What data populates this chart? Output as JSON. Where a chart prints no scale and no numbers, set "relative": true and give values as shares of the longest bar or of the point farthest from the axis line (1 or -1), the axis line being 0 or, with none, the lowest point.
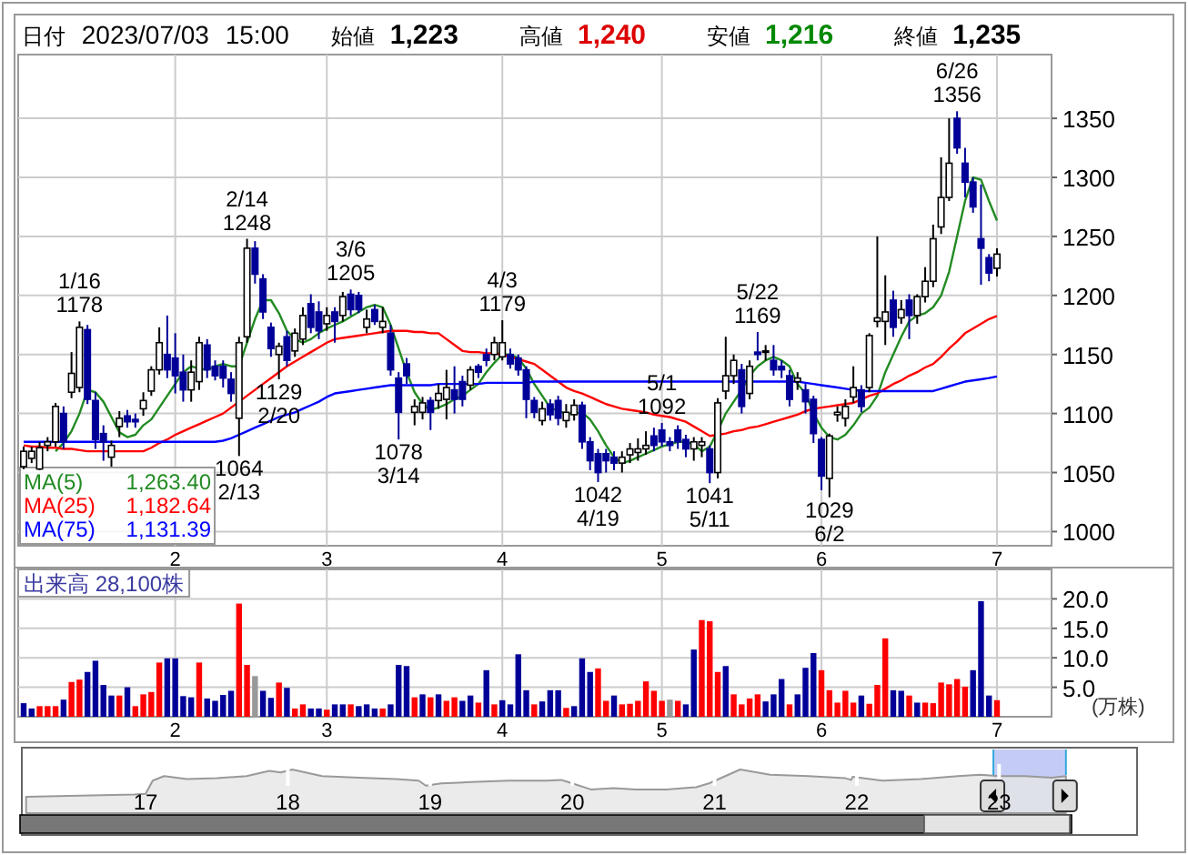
{
  "chart_data": [
    {
      "type": "candlestick",
      "title": "日付 2023/07/03 15:00 始値 1,223 高値 1,240 安値 1,216 終値 1,235",
      "categories": [
        null,
        null,
        null,
        null,
        null,
        null,
        null,
        null,
        null,
        null,
        null,
        null,
        null,
        null,
        null,
        null,
        null,
        null,
        null,
        "2",
        null,
        null,
        null,
        null,
        null,
        null,
        null,
        null,
        null,
        null,
        null,
        null,
        null,
        null,
        null,
        null,
        null,
        null,
        "3",
        null,
        null,
        null,
        null,
        null,
        null,
        null,
        null,
        null,
        null,
        null,
        null,
        null,
        null,
        null,
        null,
        null,
        null,
        null,
        null,
        null,
        "4",
        null,
        null,
        null,
        null,
        null,
        null,
        null,
        null,
        null,
        null,
        null,
        null,
        null,
        null,
        null,
        null,
        null,
        null,
        null,
        "5",
        null,
        null,
        null,
        null,
        null,
        null,
        null,
        null,
        null,
        null,
        null,
        null,
        null,
        null,
        null,
        null,
        null,
        null,
        null,
        "6",
        null,
        null,
        null,
        null,
        null,
        null,
        null,
        null,
        null,
        null,
        null,
        null,
        null,
        null,
        null,
        null,
        null,
        null,
        null,
        null,
        null,
        "7"
      ],
      "ohlc": [
        [
          1055,
          1072,
          1053,
          1068
        ],
        [
          1062,
          1072,
          1058,
          1068
        ],
        [
          1053,
          1076,
          1052,
          1071
        ],
        [
          1073,
          1080,
          1068,
          1076
        ],
        [
          1076,
          1109,
          1072,
          1106
        ],
        [
          1100,
          1106,
          1070,
          1076
        ],
        [
          1118,
          1152,
          1113,
          1134
        ],
        [
          1122,
          1178,
          1118,
          1173
        ],
        [
          1171,
          1175,
          1108,
          1112
        ],
        [
          1111,
          1118,
          1070,
          1078
        ],
        [
          1083,
          1090,
          1060,
          1076
        ],
        [
          1063,
          1077,
          1055,
          1073
        ],
        [
          1089,
          1102,
          1080,
          1096
        ],
        [
          1098,
          1103,
          1088,
          1093
        ],
        [
          1095,
          1100,
          1088,
          1093
        ],
        [
          1104,
          1118,
          1098,
          1111
        ],
        [
          1119,
          1140,
          1115,
          1137
        ],
        [
          1137,
          1173,
          1133,
          1160
        ],
        [
          1150,
          1183,
          1130,
          1137
        ],
        [
          1147,
          1168,
          1117,
          1132
        ],
        [
          1135,
          1150,
          1110,
          1120
        ],
        [
          1120,
          1145,
          1110,
          1135
        ],
        [
          1127,
          1165,
          1120,
          1160
        ],
        [
          1158,
          1163,
          1130,
          1137
        ],
        [
          1140,
          1145,
          1128,
          1132
        ],
        [
          1140,
          1145,
          1122,
          1130
        ],
        [
          1129,
          1135,
          1110,
          1117
        ],
        [
          1096,
          1165,
          1064,
          1160
        ],
        [
          1165,
          1248,
          1160,
          1240
        ],
        [
          1240,
          1246,
          1210,
          1218
        ],
        [
          1214,
          1218,
          1180,
          1186
        ],
        [
          1173,
          1177,
          1148,
          1155
        ],
        [
          1150,
          1160,
          1129,
          1157
        ],
        [
          1165,
          1170,
          1140,
          1145
        ],
        [
          1153,
          1172,
          1148,
          1168
        ],
        [
          1163,
          1190,
          1158,
          1183
        ],
        [
          1193,
          1201,
          1168,
          1173
        ],
        [
          1186,
          1195,
          1163,
          1170
        ],
        [
          1176,
          1190,
          1170,
          1183
        ],
        [
          1186,
          1190,
          1160,
          1178
        ],
        [
          1183,
          1203,
          1178,
          1199
        ],
        [
          1201,
          1205,
          1183,
          1188
        ],
        [
          1200,
          1203,
          1185,
          1188
        ],
        [
          1173,
          1188,
          1168,
          1180
        ],
        [
          1188,
          1192,
          1175,
          1178
        ],
        [
          1173,
          1190,
          1168,
          1178
        ],
        [
          1168,
          1175,
          1132,
          1137
        ],
        [
          1130,
          1135,
          1078,
          1101
        ],
        [
          1142,
          1147,
          1125,
          1132
        ],
        [
          1101,
          1112,
          1090,
          1106
        ],
        [
          1101,
          1114,
          1095,
          1109
        ],
        [
          1111,
          1114,
          1086,
          1101
        ],
        [
          1111,
          1125,
          1104,
          1117
        ],
        [
          1112,
          1137,
          1095,
          1122
        ],
        [
          1120,
          1140,
          1100,
          1112
        ],
        [
          1127,
          1132,
          1106,
          1112
        ],
        [
          1124,
          1140,
          1120,
          1137
        ],
        [
          1140,
          1142,
          1130,
          1135
        ],
        [
          1150,
          1155,
          1140,
          1145
        ],
        [
          1150,
          1165,
          1145,
          1160
        ],
        [
          1148,
          1179,
          1145,
          1160
        ],
        [
          1150,
          1155,
          1138,
          1142
        ],
        [
          1147,
          1150,
          1132,
          1137
        ],
        [
          1137,
          1140,
          1096,
          1112
        ],
        [
          1111,
          1114,
          1096,
          1101
        ],
        [
          1094,
          1110,
          1090,
          1104
        ],
        [
          1108,
          1112,
          1094,
          1099
        ],
        [
          1111,
          1115,
          1090,
          1096
        ],
        [
          1094,
          1108,
          1088,
          1101
        ],
        [
          1099,
          1112,
          1094,
          1107
        ],
        [
          1107,
          1110,
          1070,
          1076
        ],
        [
          1076,
          1080,
          1052,
          1060
        ],
        [
          1066,
          1070,
          1042,
          1050
        ],
        [
          1066,
          1070,
          1050,
          1060
        ],
        [
          1063,
          1068,
          1052,
          1058
        ],
        [
          1058,
          1068,
          1050,
          1063
        ],
        [
          1065,
          1075,
          1058,
          1070
        ],
        [
          1067,
          1079,
          1060,
          1070
        ],
        [
          1070,
          1085,
          1065,
          1073
        ],
        [
          1081,
          1088,
          1068,
          1073
        ],
        [
          1086,
          1092,
          1072,
          1076
        ],
        [
          1076,
          1080,
          1068,
          1073
        ],
        [
          1086,
          1090,
          1070,
          1076
        ],
        [
          1078,
          1082,
          1063,
          1070
        ],
        [
          1070,
          1080,
          1060,
          1076
        ],
        [
          1073,
          1080,
          1063,
          1076
        ],
        [
          1070,
          1073,
          1041,
          1050
        ],
        [
          1050,
          1113,
          1045,
          1109
        ],
        [
          1119,
          1165,
          1112,
          1132
        ],
        [
          1132,
          1150,
          1125,
          1145
        ],
        [
          1137,
          1142,
          1100,
          1106
        ],
        [
          1117,
          1145,
          1112,
          1140
        ],
        [
          1152,
          1169,
          1145,
          1150
        ],
        [
          1153,
          1158,
          1145,
          1153
        ],
        [
          1145,
          1158,
          1132,
          1137
        ],
        [
          1140,
          1145,
          1130,
          1137
        ],
        [
          1132,
          1137,
          1106,
          1112
        ],
        [
          1127,
          1135,
          1120,
          1130
        ],
        [
          1120,
          1125,
          1100,
          1110
        ],
        [
          1112,
          1115,
          1075,
          1083
        ],
        [
          1078,
          1080,
          1035,
          1047
        ],
        [
          1045,
          1083,
          1029,
          1081
        ],
        [
          1099,
          1106,
          1093,
          1101
        ],
        [
          1096,
          1112,
          1089,
          1106
        ],
        [
          1114,
          1140,
          1109,
          1122
        ],
        [
          1120,
          1124,
          1101,
          1106
        ],
        [
          1122,
          1168,
          1118,
          1166
        ],
        [
          1178,
          1250,
          1173,
          1181
        ],
        [
          1178,
          1217,
          1158,
          1186
        ],
        [
          1196,
          1204,
          1165,
          1173
        ],
        [
          1181,
          1196,
          1176,
          1188
        ],
        [
          1196,
          1201,
          1163,
          1183
        ],
        [
          1183,
          1201,
          1176,
          1199
        ],
        [
          1199,
          1224,
          1194,
          1212
        ],
        [
          1212,
          1260,
          1207,
          1248
        ],
        [
          1258,
          1317,
          1252,
          1283
        ],
        [
          1283,
          1350,
          1280,
          1312
        ],
        [
          1350,
          1356,
          1320,
          1325
        ],
        [
          1312,
          1325,
          1283,
          1296
        ],
        [
          1296,
          1300,
          1270,
          1275
        ],
        [
          1248,
          1294,
          1209,
          1240
        ],
        [
          1232,
          1235,
          1212,
          1219
        ],
        [
          1223,
          1240,
          1216,
          1235
        ]
      ],
      "colors": [
        "#ffffff",
        "#ffffff",
        "#ffffff",
        "#ffffff",
        "#ffffff",
        "#000099",
        "#ffffff",
        "#ffffff",
        "#000099",
        "#000099",
        "#000099",
        "#ffffff",
        "#ffffff",
        "#000099",
        "#000099",
        "#ffffff",
        "#ffffff",
        "#ffffff",
        "#000099",
        "#000099",
        "#000099",
        "#ffffff",
        "#ffffff",
        "#000099",
        "#000099",
        "#000099",
        "#000099",
        "#ffffff",
        "#ffffff",
        "#000099",
        "#000099",
        "#000099",
        "#ffffff",
        "#000099",
        "#ffffff",
        "#ffffff",
        "#000099",
        "#000099",
        "#ffffff",
        "#000099",
        "#ffffff",
        "#000099",
        "#000099",
        "#ffffff",
        "#000099",
        "#ffffff",
        "#000099",
        "#000099",
        "#000099",
        "#ffffff",
        "#ffffff",
        "#000099",
        "#ffffff",
        "#ffffff",
        "#000099",
        "#000099",
        "#ffffff",
        "#000099",
        "#000099",
        "#ffffff",
        "#ffffff",
        "#000099",
        "#000099",
        "#000099",
        "#000099",
        "#ffffff",
        "#000099",
        "#000099",
        "#ffffff",
        "#ffffff",
        "#000099",
        "#000099",
        "#000099",
        "#000099",
        "#000099",
        "#ffffff",
        "#ffffff",
        "#ffffff",
        "#ffffff",
        "#000099",
        "#000099",
        "#000099",
        "#000099",
        "#000099",
        "#ffffff",
        "#ffffff",
        "#000099",
        "#ffffff",
        "#ffffff",
        "#ffffff",
        "#000099",
        "#ffffff",
        "#000099",
        "#ffffff",
        "#000099",
        "#000099",
        "#000099",
        "#ffffff",
        "#000099",
        "#000099",
        "#000099",
        "#ffffff",
        "#ffffff",
        "#ffffff",
        "#ffffff",
        "#000099",
        "#ffffff",
        "#ffffff",
        "#ffffff",
        "#000099",
        "#ffffff",
        "#000099",
        "#ffffff",
        "#ffffff",
        "#ffffff",
        "#ffffff",
        "#ffffff",
        "#000099",
        "#000099",
        "#000099",
        "#000099",
        "#000099",
        "#ffffff"
      ],
      "series": [
        {
          "name": "MA(5)",
          "type": "line",
          "color": "#228b22",
          "values": [
            null,
            null,
            null,
            null,
            1068,
            1075,
            1085,
            1100,
            1120,
            1118,
            1110,
            1097,
            1084,
            1080,
            1082,
            1090,
            1095,
            1105,
            1115,
            1125,
            1135,
            1140,
            1138,
            1137,
            1140,
            1142,
            1140,
            1140,
            1160,
            1180,
            1196,
            1196,
            1185,
            1170,
            1163,
            1160,
            1163,
            1168,
            1172,
            1175,
            1178,
            1182,
            1186,
            1190,
            1192,
            1190,
            1175,
            1155,
            1135,
            1118,
            1108,
            1103,
            1105,
            1108,
            1112,
            1115,
            1120,
            1125,
            1135,
            1143,
            1150,
            1150,
            1147,
            1138,
            1125,
            1115,
            1105,
            1102,
            1100,
            1100,
            1101,
            1095,
            1085,
            1073,
            1063,
            1058,
            1060,
            1063,
            1066,
            1069,
            1072,
            1074,
            1076,
            1076,
            1074,
            1068,
            1072,
            1085,
            1100,
            1110,
            1120,
            1132,
            1140,
            1145,
            1148,
            1145,
            1140,
            1125,
            1117,
            1100,
            1088,
            1080,
            1078,
            1082,
            1090,
            1100,
            1105,
            1115,
            1135,
            1150,
            1165,
            1178,
            1183,
            1185,
            1190,
            1200,
            1220,
            1250,
            1280,
            1300,
            1298,
            1280,
            1263.4
          ]
        },
        {
          "name": "MA(25)",
          "type": "line",
          "color": "#ff0000",
          "values": [
            1073,
            1072,
            1072,
            1071,
            1071,
            1070,
            1070,
            1069,
            1068,
            1068,
            1068,
            1068,
            1068,
            1068,
            1068,
            1068,
            1071,
            1075,
            1078,
            1082,
            1085,
            1088,
            1091,
            1094,
            1097,
            1100,
            1105,
            1110,
            1115,
            1120,
            1125,
            1130,
            1135,
            1140,
            1144,
            1148,
            1152,
            1156,
            1160,
            1163,
            1164,
            1165,
            1166,
            1167,
            1168,
            1169,
            1170,
            1170,
            1170,
            1169,
            1169,
            1168,
            1168,
            1163,
            1158,
            1153,
            1152,
            1152,
            1151,
            1151,
            1150,
            1148,
            1146,
            1144,
            1142,
            1137,
            1132,
            1127,
            1122,
            1119,
            1117,
            1114,
            1111,
            1108,
            1106,
            1104,
            1103,
            1102,
            1101,
            1099,
            1098,
            1097,
            1095,
            1093,
            1089,
            1085,
            1081,
            1082,
            1083,
            1085,
            1086,
            1088,
            1089,
            1091,
            1093,
            1095,
            1097,
            1099,
            1102,
            1104,
            1105,
            1106,
            1107,
            1108,
            1109,
            1112,
            1115,
            1117,
            1121,
            1125,
            1128,
            1132,
            1135,
            1139,
            1142,
            1148,
            1155,
            1161,
            1168,
            1172,
            1176,
            1180,
            1182.64
          ]
        },
        {
          "name": "MA(75)",
          "type": "line",
          "color": "#0000ff",
          "values": [
            1076,
            1076,
            1076,
            1076,
            1076,
            1076,
            1076,
            1076,
            1076,
            1076,
            1076,
            1076,
            1076,
            1076,
            1076,
            1076,
            1076,
            1076,
            1076,
            1076,
            1076,
            1076,
            1076,
            1076,
            1076,
            1077,
            1079,
            1082,
            1085,
            1088,
            1091,
            1094,
            1097,
            1099,
            1101,
            1104,
            1107,
            1110,
            1114,
            1117,
            1118,
            1119,
            1120,
            1121,
            1122,
            1123,
            1124,
            1124,
            1124,
            1124,
            1124,
            1124,
            1125,
            1125,
            1125,
            1125,
            1125,
            1125,
            1126,
            1126,
            1126,
            1126,
            1126,
            1126,
            1127,
            1127,
            1127,
            1127,
            1127,
            1127,
            1127,
            1127,
            1127,
            1127,
            1127,
            1127,
            1127,
            1127,
            1127,
            1127,
            1127,
            1127,
            1127,
            1127,
            1127,
            1127,
            1127,
            1127,
            1127,
            1127,
            1127,
            1127,
            1127,
            1127,
            1127,
            1127,
            1127,
            1127,
            1126,
            1125,
            1124,
            1123,
            1122,
            1121,
            1120,
            1119,
            1119,
            1119,
            1119,
            1119,
            1119,
            1119,
            1119,
            1119,
            1119,
            1121,
            1123,
            1125,
            1127,
            1128,
            1129,
            1130,
            1131.39
          ]
        }
      ],
      "annotations": [
        "1,263.40",
        "1,182.64",
        "1,131.39",
        {
          "text": "1/16\n1178",
          "y": 1178
        },
        {
          "text": "2/14\n1248",
          "y": 1248
        },
        {
          "text": "1064\n2/13",
          "y": 1064
        },
        {
          "text": "1129\n2/20",
          "y": 1129
        },
        {
          "text": "3/6\n1205",
          "y": 1205
        },
        {
          "text": "1078\n3/14",
          "y": 1078
        },
        {
          "text": "4/3\n1179",
          "y": 1179
        },
        {
          "text": "1042\n4/19",
          "y": 1042
        },
        {
          "text": "5/1\n1092",
          "y": 1092
        },
        {
          "text": "1041\n5/11",
          "y": 1041
        },
        {
          "text": "5/22\n1169",
          "y": 1169
        },
        {
          "text": "1029\n6/2",
          "y": 1029
        },
        {
          "text": "6/26\n1356",
          "y": 1356
        }
      ],
      "ylim": [
        988,
        1404
      ],
      "yticks": [
        1000,
        1050,
        1100,
        1150,
        1200,
        1250,
        1300,
        1350
      ],
      "grid": true,
      "legend": "bottom left"
    },
    {
      "type": "bar",
      "title": "出来高 28,100株",
      "ylabel": "(万株)",
      "categories": [
        null,
        null,
        null,
        null,
        null,
        null,
        null,
        null,
        null,
        null,
        null,
        null,
        null,
        null,
        null,
        null,
        null,
        null,
        null,
        "2",
        null,
        null,
        null,
        null,
        null,
        null,
        null,
        null,
        null,
        null,
        null,
        null,
        null,
        null,
        null,
        null,
        null,
        null,
        "3",
        null,
        null,
        null,
        null,
        null,
        null,
        null,
        null,
        null,
        null,
        null,
        null,
        null,
        null,
        null,
        null,
        null,
        null,
        null,
        null,
        null,
        "4",
        null,
        null,
        null,
        null,
        null,
        null,
        null,
        null,
        null,
        null,
        null,
        null,
        null,
        null,
        null,
        null,
        null,
        null,
        null,
        "5",
        null,
        null,
        null,
        null,
        null,
        null,
        null,
        null,
        null,
        null,
        null,
        null,
        null,
        null,
        null,
        null,
        null,
        null,
        null,
        "6",
        null,
        null,
        null,
        null,
        null,
        null,
        null,
        null,
        null,
        null,
        null,
        null,
        null,
        null,
        null,
        null,
        null,
        null,
        null,
        null,
        null,
        "7"
      ],
      "values": [
        2.3,
        1.4,
        1.8,
        1.8,
        1.8,
        2.9,
        5.9,
        6.3,
        7.6,
        9.5,
        5.4,
        3.6,
        3.6,
        5.0,
        1.8,
        3.8,
        4.2,
        9.2,
        9.9,
        9.9,
        3.5,
        3.3,
        9.2,
        3.1,
        2.7,
        3.7,
        4.4,
        19.2,
        8.8,
        6.9,
        4.4,
        3.2,
        5.8,
        4.9,
        1.4,
        2.1,
        1.4,
        1.4,
        1.2,
        2.1,
        2.1,
        2.1,
        1.8,
        2.1,
        1.4,
        1.4,
        2.1,
        8.8,
        8.6,
        3.3,
        3.8,
        3.3,
        3.8,
        2.7,
        3.3,
        2.7,
        3.6,
        2.4,
        7.9,
        2.1,
        2.8,
        2.1,
        10.6,
        4.5,
        2.1,
        2.6,
        4.5,
        4.5,
        1.5,
        1.8,
        9.9,
        7.6,
        8.2,
        2.7,
        3.6,
        2.1,
        2.2,
        2.7,
        6.0,
        4.4,
        2.7,
        2.9,
        2.7,
        2.1,
        11.4,
        16.4,
        16.2,
        7.6,
        8.6,
        3.8,
        2.1,
        3.1,
        3.8,
        2.6,
        3.8,
        6.4,
        2.1,
        3.8,
        8.3,
        10.8,
        7.9,
        4.5,
        2.4,
        4.4,
        2.4,
        3.6,
        2.2,
        5.4,
        13.3,
        4.5,
        4.4,
        3.6,
        2.4,
        2.4,
        2.3,
        5.8,
        5.5,
        6.4,
        5.1,
        7.9,
        19.6,
        3.6,
        2.81
      ],
      "colors": [
        "#000099",
        "#000099",
        "#ff0000",
        "#ff0000",
        "#ff0000",
        "#000099",
        "#ff0000",
        "#ff0000",
        "#000099",
        "#000099",
        "#000099",
        "#000099",
        "#ff0000",
        "#000099",
        "#ff0000",
        "#ff0000",
        "#ff0000",
        "#ff0000",
        "#000099",
        "#000099",
        "#000099",
        "#000099",
        "#ff0000",
        "#000099",
        "#000099",
        "#000099",
        "#000099",
        "#ff0000",
        "#ff0000",
        "#999999",
        "#000099",
        "#000099",
        "#ff0000",
        "#000099",
        "#ff0000",
        "#ff0000",
        "#000099",
        "#000099",
        "#ff0000",
        "#000099",
        "#000099",
        "#ff0000",
        "#000099",
        "#000099",
        "#000099",
        "#ff0000",
        "#000099",
        "#000099",
        "#000099",
        "#ff0000",
        "#000099",
        "#ff0000",
        "#000099",
        "#ff0000",
        "#ff0000",
        "#000099",
        "#000099",
        "#ff0000",
        "#000099",
        "#ff0000",
        "#000099",
        "#000099",
        "#000099",
        "#000099",
        "#ff0000",
        "#000099",
        "#000099",
        "#000099",
        "#ff0000",
        "#000099",
        "#000099",
        "#000099",
        "#ff0000",
        "#ff0000",
        "#000099",
        "#ff0000",
        "#ff0000",
        "#ff0000",
        "#ff0000",
        "#ff0000",
        "#ff0000",
        "#999999",
        "#ff0000",
        "#000099",
        "#000099",
        "#ff0000",
        "#ff0000",
        "#ff0000",
        "#000099",
        "#ff0000",
        "#ff0000",
        "#ff0000",
        "#ff0000",
        "#000099",
        "#000099",
        "#000099",
        "#ff0000",
        "#000099",
        "#000099",
        "#000099",
        "#ff0000",
        "#ff0000",
        "#ff0000",
        "#ff0000",
        "#ff0000",
        "#000099",
        "#ff0000",
        "#ff0000",
        "#ff0000",
        "#000099",
        "#000099",
        "#ff0000",
        "#000099",
        "#ff0000",
        "#ff0000",
        "#ff0000",
        "#ff0000",
        "#ff0000",
        "#ff0000",
        "#000099",
        "#000099",
        "#000099",
        "#ff0000"
      ],
      "ylim": [
        0,
        25
      ],
      "yticks": [
        {
          "value": 5,
          "label": "5.0"
        },
        {
          "value": 10,
          "label": "10.0"
        },
        {
          "value": 15,
          "label": "15.0"
        },
        {
          "value": 20,
          "label": "20.0"
        }
      ],
      "grid": true
    },
    {
      "type": "area",
      "relative": true,
      "x": [
        2016.16,
        2016.92,
        2017.0,
        2017.05,
        2017.13,
        2017.29,
        2017.5,
        2017.71,
        2017.87,
        2017.95,
        2018.03,
        2018.24,
        2018.5,
        2018.76,
        2018.92,
        2018.97,
        2019.08,
        2019.29,
        2019.55,
        2019.82,
        2019.92,
        2019.97,
        2020.13,
        2020.29,
        2020.45,
        2020.66,
        2020.87,
        2020.96,
        2021.05,
        2021.18,
        2021.39,
        2021.66,
        2021.92,
        2021.96,
        2021.97,
        2022.18,
        2022.45,
        2022.71,
        2022.87,
        2023.0,
        2023.18,
        2023.37,
        2023.47
      ],
      "series": [
        {
          "color": "#999999",
          "values": [
            0,
            0.08,
            0.11,
            0.59,
            0.76,
            0.65,
            0.68,
            0.76,
            0.95,
            0.89,
            1.0,
            0.76,
            0.7,
            0.65,
            0.59,
            0.41,
            0.49,
            0.54,
            0.59,
            0.59,
            0.62,
            0.54,
            0.27,
            0.32,
            0.27,
            0.27,
            0.35,
            0.49,
            0.7,
            1.0,
            0.81,
            0.76,
            0.68,
            0.62,
            0.73,
            0.59,
            0.65,
            0.76,
            0.81,
            0.76,
            0.76,
            0.7,
            0.76
          ]
        }
      ],
      "xlim": [
        2016.13,
        2023.97
      ],
      "xticks": [
        {
          "value": 2017,
          "label": "17"
        },
        {
          "value": 2018,
          "label": "18"
        },
        {
          "value": 2019,
          "label": "19"
        },
        {
          "value": 2020,
          "label": "20"
        },
        {
          "value": 2021,
          "label": "21"
        },
        {
          "value": 2022,
          "label": "22"
        },
        {
          "value": 2023,
          "label": "23"
        }
      ],
      "grid": "x",
      "bands": [
        {
          "axis": "x",
          "from": 2022.96,
          "to": 2023.47,
          "color": "#c4ccf6"
        }
      ]
    }
  ]
}
